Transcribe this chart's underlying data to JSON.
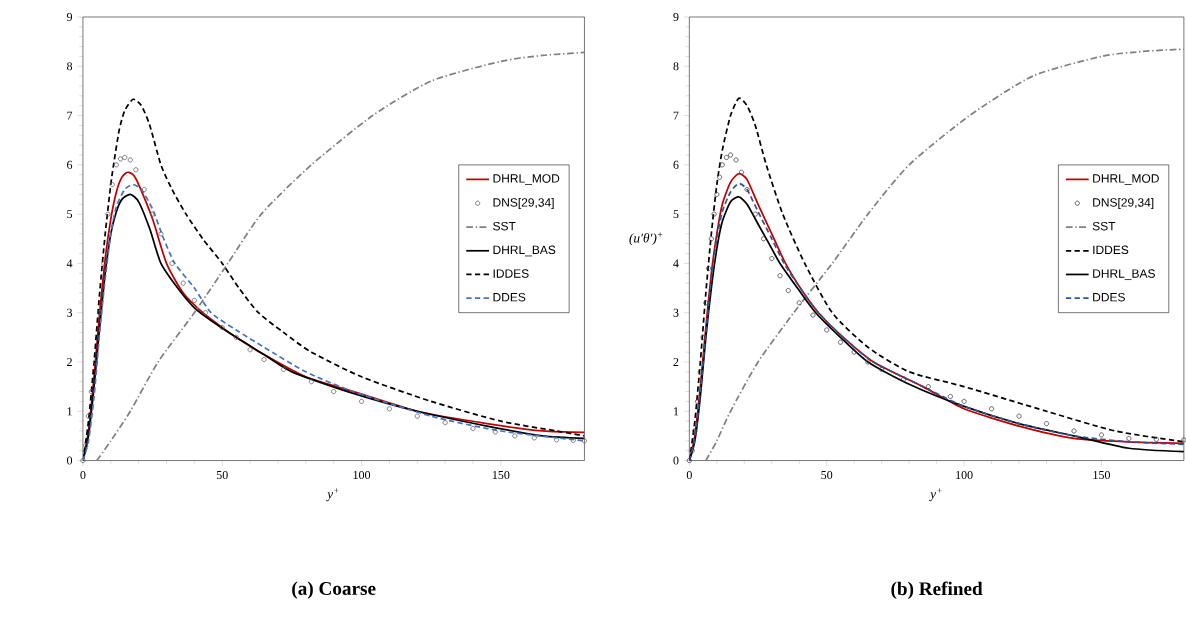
{
  "chart_data": [
    {
      "type": "line",
      "title": "(a) Coarse",
      "xlabel": "y$^{+}$",
      "xlim": [
        0,
        180
      ],
      "ylim": [
        0,
        9
      ],
      "xticks": [
        0,
        50,
        100,
        150
      ],
      "yticks": [
        0,
        1,
        2,
        3,
        4,
        5,
        6,
        7,
        8,
        9
      ],
      "legend": "right",
      "series": [
        {
          "name": "DHRL_MOD",
          "color": "#c00000",
          "line_style": "solid",
          "x": [
            0,
            2,
            4,
            6,
            8,
            10,
            12,
            14,
            16,
            18,
            20,
            25,
            30,
            36,
            43,
            50,
            55,
            65,
            80,
            100,
            120,
            145,
            165,
            180
          ],
          "values": [
            0,
            0.6,
            1.7,
            3.0,
            4.1,
            4.9,
            5.45,
            5.75,
            5.85,
            5.8,
            5.6,
            4.9,
            4.0,
            3.4,
            3.0,
            2.7,
            2.5,
            2.15,
            1.7,
            1.35,
            1.0,
            0.75,
            0.6,
            0.57
          ]
        },
        {
          "name": "DNS[29,34]",
          "type": "scatter",
          "marker": "circle",
          "color": "#606060",
          "x": [
            0,
            1,
            2,
            3,
            4.5,
            6,
            7.5,
            9,
            10.5,
            12,
            13.5,
            15,
            17,
            19,
            22,
            25,
            28,
            32,
            36,
            40,
            44,
            50,
            55,
            60,
            65,
            72,
            82,
            90,
            100,
            110,
            120,
            130,
            140,
            148,
            155,
            162,
            170,
            176,
            180
          ],
          "values": [
            0,
            0.3,
            0.9,
            1.4,
            2.0,
            3.0,
            4.0,
            5.0,
            5.6,
            6.0,
            6.12,
            6.15,
            6.1,
            5.9,
            5.5,
            5.0,
            4.6,
            4.0,
            3.6,
            3.25,
            3.0,
            2.7,
            2.5,
            2.25,
            2.05,
            1.85,
            1.6,
            1.4,
            1.2,
            1.05,
            0.9,
            0.77,
            0.65,
            0.58,
            0.5,
            0.46,
            0.42,
            0.41,
            0.4
          ]
        },
        {
          "name": "SST",
          "color": "#808080",
          "line_style": "dashdot",
          "x": [
            5,
            10,
            17,
            27,
            40,
            52,
            64,
            82,
            104,
            125,
            150,
            165,
            180
          ],
          "values": [
            0,
            0.4,
            1.0,
            2.0,
            3.0,
            4.0,
            5.0,
            6.0,
            7.0,
            7.7,
            8.1,
            8.22,
            8.28
          ]
        },
        {
          "name": "DHRL_BAS",
          "color": "#000000",
          "line_style": "solid",
          "x": [
            0,
            2,
            4,
            6,
            8,
            10,
            12,
            14,
            17,
            20,
            24,
            28,
            34,
            40,
            47,
            55,
            65,
            75,
            95,
            120,
            145,
            165,
            180
          ],
          "values": [
            0,
            0.5,
            1.5,
            2.7,
            3.8,
            4.6,
            5.05,
            5.3,
            5.4,
            5.25,
            4.7,
            4.0,
            3.5,
            3.1,
            2.8,
            2.5,
            2.15,
            1.8,
            1.4,
            1.0,
            0.7,
            0.5,
            0.45
          ]
        },
        {
          "name": "IDDES",
          "color": "#000000",
          "line_style": "dashed",
          "x": [
            0,
            2,
            4,
            6,
            8,
            10,
            11,
            13,
            15,
            18,
            21,
            24,
            28,
            32,
            37,
            43,
            50,
            56,
            63,
            72,
            82,
            100,
            125,
            150,
            170,
            180
          ],
          "values": [
            0,
            0.8,
            2.0,
            3.4,
            4.6,
            5.6,
            6.0,
            6.7,
            7.1,
            7.33,
            7.2,
            6.8,
            6.0,
            5.5,
            5.0,
            4.5,
            4.0,
            3.5,
            3.0,
            2.6,
            2.2,
            1.7,
            1.2,
            0.8,
            0.6,
            0.5
          ]
        },
        {
          "name": "DDES",
          "color": "#4472c4",
          "line_style": "dashed",
          "x": [
            0,
            2,
            4,
            6,
            8,
            10,
            12,
            15,
            18,
            21,
            25,
            29,
            33,
            40,
            46,
            55,
            65,
            80,
            97,
            125,
            150,
            180
          ],
          "values": [
            0,
            0.4,
            1.3,
            2.6,
            3.7,
            4.6,
            5.15,
            5.5,
            5.6,
            5.5,
            5.1,
            4.5,
            4.0,
            3.5,
            3.0,
            2.65,
            2.3,
            1.8,
            1.4,
            0.9,
            0.6,
            0.4
          ]
        }
      ]
    },
    {
      "type": "line",
      "title": "(b) Refined",
      "xlabel": "y$^{+}$",
      "ylabel": "(u′θ′)$^{+}$",
      "xlim": [
        0,
        180
      ],
      "ylim": [
        0,
        9
      ],
      "xticks": [
        0,
        50,
        100,
        150
      ],
      "yticks": [
        0,
        1,
        2,
        3,
        4,
        5,
        6,
        7,
        8,
        9
      ],
      "legend": "right",
      "series": [
        {
          "name": "DHRL_MOD",
          "color": "#c00000",
          "line_style": "solid",
          "x": [
            0,
            2,
            4,
            6,
            8,
            10,
            12,
            15,
            18,
            21,
            25,
            30,
            35,
            41,
            47,
            55,
            67,
            85,
            100,
            120,
            140,
            160,
            180
          ],
          "values": [
            0,
            0.5,
            1.5,
            2.7,
            3.8,
            4.6,
            5.2,
            5.65,
            5.82,
            5.7,
            5.2,
            4.6,
            4.0,
            3.45,
            3.0,
            2.55,
            2.0,
            1.5,
            1.05,
            0.7,
            0.45,
            0.38,
            0.35
          ]
        },
        {
          "name": "DNS[29,34]",
          "type": "scatter",
          "marker": "circle",
          "color": "#404040",
          "x": [
            0,
            1,
            2,
            3,
            4,
            5,
            6,
            7,
            8,
            9,
            10,
            11,
            12,
            13.5,
            15,
            17,
            19,
            21,
            24,
            27,
            30,
            33,
            36,
            40,
            45,
            50,
            55,
            60,
            65,
            70,
            78,
            87,
            95,
            100,
            110,
            120,
            130,
            140,
            150,
            160,
            170,
            180
          ],
          "values": [
            0,
            0.2,
            0.6,
            1.2,
            1.8,
            2.5,
            3.2,
            3.9,
            4.5,
            5.0,
            5.4,
            5.75,
            6.0,
            6.15,
            6.2,
            6.1,
            5.85,
            5.5,
            5.0,
            4.5,
            4.1,
            3.75,
            3.45,
            3.2,
            2.95,
            2.65,
            2.4,
            2.2,
            2.0,
            1.85,
            1.65,
            1.5,
            1.3,
            1.2,
            1.05,
            0.9,
            0.75,
            0.6,
            0.52,
            0.45,
            0.43,
            0.42
          ]
        },
        {
          "name": "SST",
          "color": "#808080",
          "line_style": "dashdot",
          "x": [
            6,
            10,
            15,
            25,
            38,
            52,
            65,
            80,
            102,
            125,
            150,
            165,
            180
          ],
          "values": [
            0,
            0.4,
            1.0,
            2.0,
            3.0,
            4.0,
            5.0,
            6.0,
            7.0,
            7.8,
            8.2,
            8.3,
            8.35
          ]
        },
        {
          "name": "IDDES",
          "color": "#000000",
          "line_style": "dashed",
          "x": [
            0,
            2,
            4,
            6,
            8,
            10,
            12,
            15,
            18,
            21,
            24,
            28,
            34,
            42,
            52,
            65,
            80,
            100,
            130,
            155,
            180
          ],
          "values": [
            0,
            0.8,
            2.0,
            3.4,
            4.6,
            5.6,
            6.3,
            7.0,
            7.35,
            7.2,
            6.8,
            6.0,
            5.0,
            4.0,
            3.0,
            2.3,
            1.8,
            1.5,
            1.0,
            0.6,
            0.38
          ]
        },
        {
          "name": "DHRL_BAS",
          "color": "#000000",
          "line_style": "solid",
          "x": [
            0,
            2,
            4,
            6,
            8,
            10,
            12,
            15,
            18,
            21,
            25,
            29,
            33,
            40,
            46,
            55,
            65,
            80,
            100,
            120,
            140,
            160,
            180
          ],
          "values": [
            0,
            0.4,
            1.3,
            2.5,
            3.5,
            4.3,
            4.85,
            5.25,
            5.35,
            5.2,
            4.8,
            4.4,
            4.0,
            3.45,
            3.0,
            2.5,
            2.0,
            1.55,
            1.1,
            0.75,
            0.5,
            0.25,
            0.18
          ]
        },
        {
          "name": "DDES",
          "color": "#2f5597",
          "line_style": "dashed",
          "x": [
            0,
            2,
            4,
            6,
            8,
            10,
            12,
            15,
            18,
            21,
            25,
            30,
            35,
            41,
            47,
            55,
            67,
            85,
            100,
            120,
            140,
            160,
            180
          ],
          "values": [
            0,
            0.45,
            1.4,
            2.6,
            3.7,
            4.5,
            5.05,
            5.45,
            5.62,
            5.5,
            5.05,
            4.5,
            3.95,
            3.45,
            3.0,
            2.55,
            2.0,
            1.5,
            1.1,
            0.75,
            0.5,
            0.38,
            0.33
          ]
        }
      ]
    }
  ]
}
